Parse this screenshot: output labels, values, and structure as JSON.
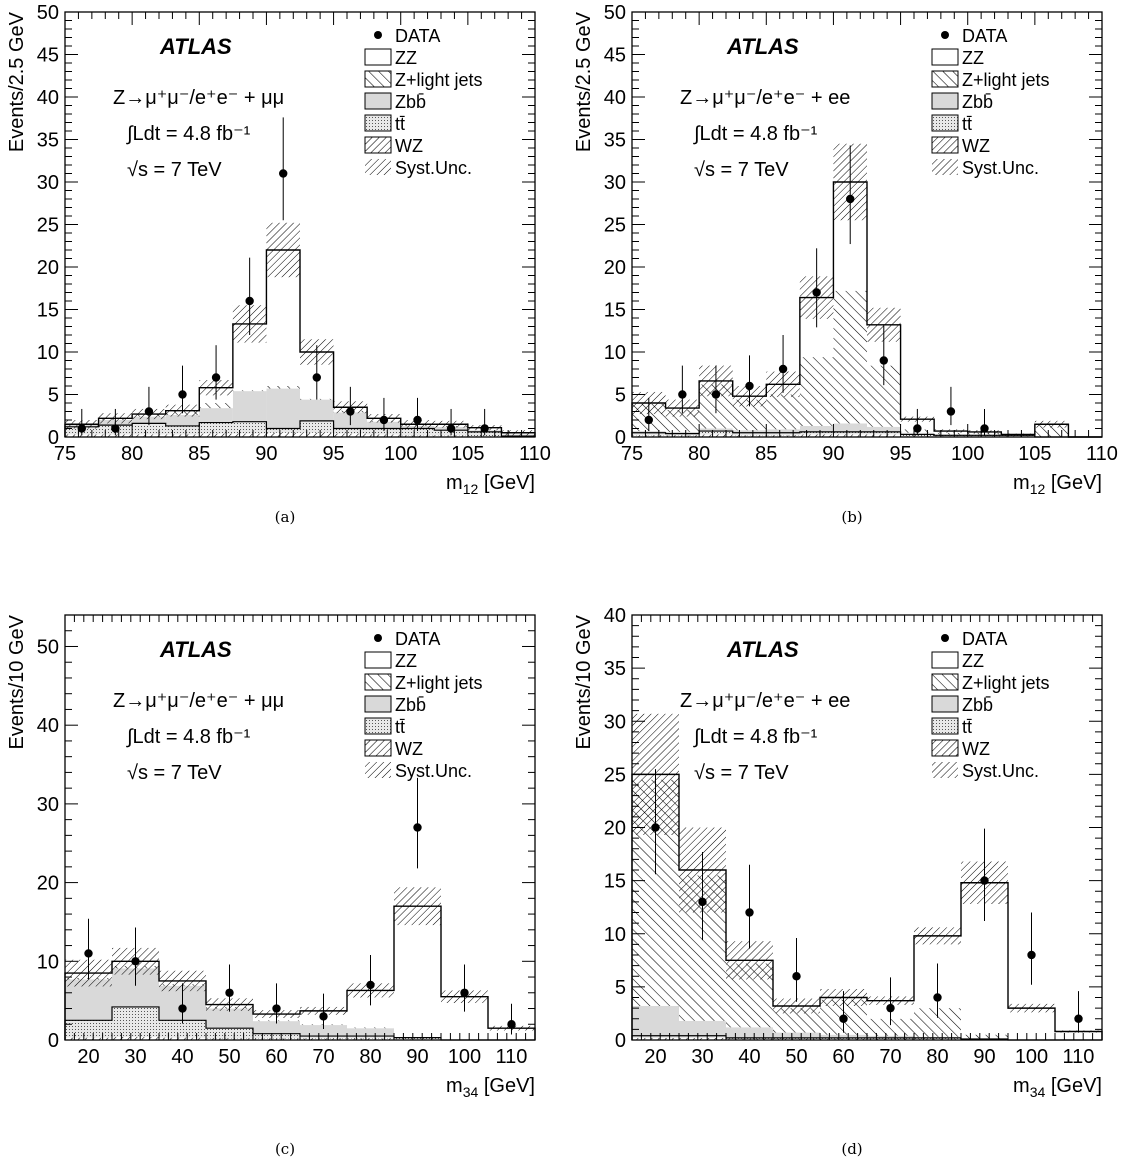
{
  "chart_data": [
    {
      "type": "bar",
      "stacked": true,
      "caption": "(a)",
      "label": "ATLAS",
      "text_lines": [
        "Z→μ⁺μ⁻/e⁺e⁻ + μμ",
        "∫Ldt = 4.8 fb⁻¹",
        "√s = 7 TeV"
      ],
      "ylabel": "Events/2.5 GeV",
      "xlabel_main": "m",
      "xlabel_sub": "12",
      "xlabel_unit": " [GeV]",
      "xlim": [
        75,
        110
      ],
      "ylim": [
        0,
        50
      ],
      "xticks": [
        75,
        80,
        85,
        90,
        95,
        100,
        105,
        110
      ],
      "yticks": [
        0,
        5,
        10,
        15,
        20,
        25,
        30,
        35,
        40,
        45,
        50
      ],
      "x_edges": [
        75,
        77.5,
        80,
        82.5,
        85,
        87.5,
        90,
        92.5,
        95,
        97.5,
        100,
        102.5,
        105,
        107.5,
        110
      ],
      "series": [
        {
          "name": "WZ",
          "values": [
            0.3,
            0.3,
            0.3,
            0.3,
            0.4,
            0.4,
            0.5,
            0.5,
            0.4,
            0.3,
            0.2,
            0.2,
            0.1,
            0.1
          ]
        },
        {
          "name": "tt̄",
          "values": [
            0.9,
            1.1,
            1.3,
            1.0,
            1.3,
            1.4,
            0.5,
            1.4,
            0.6,
            0.7,
            0.8,
            0.6,
            0.5,
            0
          ]
        },
        {
          "name": "Zbb̄",
          "values": [
            0.3,
            0.6,
            0.8,
            1.3,
            1.7,
            3.6,
            4.7,
            2.5,
            1.9,
            0.8,
            0.3,
            0.4,
            0.2,
            0.2
          ]
        },
        {
          "name": "Z+light jets",
          "values": [
            0.0,
            0.2,
            0.3,
            0.5,
            0.6,
            0.1,
            0.3,
            0.1,
            0.2,
            0.1,
            0.2,
            0.1,
            0.0,
            0.0
          ]
        },
        {
          "name": "ZZ",
          "values": [
            0,
            0,
            0,
            0,
            1.8,
            7.8,
            16,
            5.5,
            0.4,
            0.3,
            0,
            0.2,
            0.3,
            0.2
          ]
        }
      ],
      "syst_band": {
        "name": "Syst.Unc.",
        "halfwidths": [
          0.5,
          0.6,
          0.6,
          0.7,
          0.9,
          2.2,
          3.2,
          1.5,
          0.7,
          0.5,
          0.5,
          0.4,
          0.3,
          0.3
        ]
      },
      "data": {
        "name": "DATA",
        "x": [
          76.25,
          78.75,
          81.25,
          83.75,
          86.25,
          88.75,
          91.25,
          93.75,
          96.25,
          98.75,
          101.25,
          103.75,
          106.25
        ],
        "y": [
          1,
          1,
          3,
          5,
          7,
          16,
          31,
          7,
          3,
          2,
          2,
          1,
          1
        ],
        "err_up": [
          2.3,
          2.3,
          2.9,
          3.4,
          3.8,
          5.1,
          6.6,
          3.8,
          2.9,
          2.6,
          2.6,
          2.3,
          2.3
        ],
        "err_down": [
          0.8,
          0.8,
          1.6,
          2.2,
          2.6,
          4.0,
          5.5,
          2.6,
          1.6,
          1.3,
          1.3,
          0.8,
          0.8
        ]
      },
      "legend": [
        "DATA",
        "ZZ",
        "Z+light jets",
        "Zbb̄",
        "tt̄",
        "WZ",
        "Syst.Unc."
      ]
    },
    {
      "type": "bar",
      "stacked": true,
      "caption": "(b)",
      "label": "ATLAS",
      "text_lines": [
        "Z→μ⁺μ⁻/e⁺e⁻ + ee",
        "∫Ldt = 4.8 fb⁻¹",
        "√s = 7 TeV"
      ],
      "ylabel": "Events/2.5 GeV",
      "xlabel_main": "m",
      "xlabel_sub": "12",
      "xlabel_unit": " [GeV]",
      "xlim": [
        75,
        110
      ],
      "ylim": [
        0,
        50
      ],
      "xticks": [
        75,
        80,
        85,
        90,
        95,
        100,
        105,
        110
      ],
      "yticks": [
        0,
        5,
        10,
        15,
        20,
        25,
        30,
        35,
        40,
        45,
        50
      ],
      "x_edges": [
        75,
        77.5,
        80,
        82.5,
        85,
        87.5,
        90,
        92.5,
        95,
        97.5,
        100,
        102.5,
        105,
        107.5,
        110
      ],
      "series": [
        {
          "name": "WZ",
          "values": [
            0.2,
            0.2,
            0.3,
            0.2,
            0.2,
            0.3,
            0.3,
            0.3,
            0.1,
            0.1,
            0.1,
            0.1,
            0.0,
            0.0
          ]
        },
        {
          "name": "tt̄",
          "values": [
            0.3,
            0.2,
            0.4,
            0.3,
            0.3,
            0.3,
            0.3,
            0.3,
            0.2,
            0.1,
            0.1,
            0.1,
            0.0,
            0.0
          ]
        },
        {
          "name": "Zbb̄",
          "values": [
            0.2,
            0.2,
            0.3,
            0.3,
            0.4,
            0.7,
            1.0,
            0.6,
            0.2,
            0.1,
            0.1,
            0.1,
            0.0,
            0.0
          ]
        },
        {
          "name": "Z+light jets",
          "values": [
            3.2,
            2.6,
            5.2,
            3.6,
            4.1,
            8.1,
            15.6,
            7.2,
            0.4,
            0.2,
            0.2,
            0.0,
            1.4,
            0.0
          ]
        },
        {
          "name": "ZZ",
          "values": [
            0.1,
            0.2,
            0.4,
            0.4,
            1.2,
            7.0,
            12.8,
            4.8,
            1.2,
            0.2,
            0.1,
            0.0,
            0.1,
            0.0
          ]
        }
      ],
      "syst_band": {
        "name": "Syst.Unc.",
        "halfwidths": [
          1.3,
          1.0,
          1.8,
          1.2,
          1.5,
          2.5,
          4.5,
          2.0,
          0.3,
          0.2,
          0.2,
          0.1,
          0.4,
          0.0
        ]
      },
      "data": {
        "name": "DATA",
        "x": [
          76.25,
          78.75,
          81.25,
          83.75,
          86.25,
          88.75,
          91.25,
          93.75,
          96.25,
          98.75,
          101.25
        ],
        "y": [
          2,
          5,
          5,
          6,
          8,
          17,
          28,
          9,
          1,
          3,
          1
        ],
        "err_up": [
          2.6,
          3.4,
          3.4,
          3.6,
          4.0,
          5.2,
          6.3,
          4.1,
          2.3,
          2.9,
          2.3
        ],
        "err_down": [
          1.3,
          2.2,
          2.2,
          2.4,
          2.8,
          4.1,
          5.3,
          2.9,
          0.8,
          1.6,
          0.8
        ]
      },
      "legend": [
        "DATA",
        "ZZ",
        "Z+light jets",
        "Zbb̄",
        "tt̄",
        "WZ",
        "Syst.Unc."
      ]
    },
    {
      "type": "bar",
      "stacked": true,
      "caption": "(c)",
      "label": "ATLAS",
      "text_lines": [
        "Z→μ⁺μ⁻/e⁺e⁻ + μμ",
        "∫Ldt = 4.8 fb⁻¹",
        "√s = 7 TeV"
      ],
      "ylabel": "Events/10 GeV",
      "xlabel_main": "m",
      "xlabel_sub": "34",
      "xlabel_unit": " [GeV]",
      "xlim": [
        15,
        115
      ],
      "ylim": [
        0,
        54
      ],
      "xticks": [
        20,
        30,
        40,
        50,
        60,
        70,
        80,
        90,
        100,
        110
      ],
      "yticks": [
        0,
        10,
        20,
        30,
        40,
        50
      ],
      "x_edges": [
        15,
        25,
        35,
        45,
        55,
        65,
        75,
        85,
        95,
        105,
        115
      ],
      "series": [
        {
          "name": "WZ",
          "values": [
            0.3,
            0.4,
            0.3,
            0.2,
            0.2,
            0.2,
            0.2,
            0.1,
            0.0,
            0.0
          ]
        },
        {
          "name": "tt̄",
          "values": [
            2.2,
            3.8,
            2.2,
            1.3,
            0.6,
            0.3,
            0.3,
            0.2,
            0.0,
            0.0
          ]
        },
        {
          "name": "Zbb̄",
          "values": [
            5.2,
            4.9,
            4.4,
            2.5,
            1.6,
            1.4,
            1.0,
            0.0,
            0.0,
            0.0
          ]
        },
        {
          "name": "Z+light jets",
          "values": [
            0.2,
            0.3,
            0.2,
            0.2,
            0.1,
            0.1,
            0.1,
            0.0,
            0.0,
            0.0
          ]
        },
        {
          "name": "ZZ",
          "values": [
            0.6,
            0.6,
            0.4,
            0.3,
            0.8,
            1.7,
            4.7,
            16.7,
            5.5,
            1.5
          ]
        }
      ],
      "syst_band": {
        "name": "Syst.Unc.",
        "halfwidths": [
          1.7,
          1.7,
          1.3,
          0.8,
          0.5,
          0.5,
          0.9,
          2.4,
          0.8,
          0.3
        ]
      },
      "data": {
        "name": "DATA",
        "x": [
          20,
          30,
          40,
          50,
          60,
          70,
          80,
          90,
          100,
          110
        ],
        "y": [
          11,
          10,
          4,
          6,
          4,
          3,
          7,
          27,
          6,
          2
        ],
        "err_up": [
          4.4,
          4.3,
          3.2,
          3.6,
          3.2,
          2.9,
          3.8,
          6.3,
          3.6,
          2.6
        ],
        "err_down": [
          3.3,
          3.1,
          1.9,
          2.4,
          1.9,
          1.6,
          2.6,
          5.2,
          2.4,
          1.3
        ]
      },
      "legend": [
        "DATA",
        "ZZ",
        "Z+light jets",
        "Zbb̄",
        "tt̄",
        "WZ",
        "Syst.Unc."
      ]
    },
    {
      "type": "bar",
      "stacked": true,
      "caption": "(d)",
      "label": "ATLAS",
      "text_lines": [
        "Z→μ⁺μ⁻/e⁺e⁻ + ee",
        "∫Ldt = 4.8 fb⁻¹",
        "√s = 7 TeV"
      ],
      "ylabel": "Events/10 GeV",
      "xlabel_main": "m",
      "xlabel_sub": "34",
      "xlabel_unit": " [GeV]",
      "xlim": [
        15,
        115
      ],
      "ylim": [
        0,
        40
      ],
      "xticks": [
        20,
        30,
        40,
        50,
        60,
        70,
        80,
        90,
        100,
        110
      ],
      "yticks": [
        0,
        5,
        10,
        15,
        20,
        25,
        30,
        35,
        40
      ],
      "x_edges": [
        15,
        25,
        35,
        45,
        55,
        65,
        75,
        85,
        95,
        105,
        115
      ],
      "series": [
        {
          "name": "WZ",
          "values": [
            0.2,
            0.2,
            0.1,
            0.1,
            0.1,
            0.1,
            0.1,
            0.1,
            0.0,
            0.0
          ]
        },
        {
          "name": "tt̄",
          "values": [
            0.2,
            0.2,
            0.1,
            0.1,
            0.1,
            0.1,
            0.1,
            0.0,
            0.0,
            0.0
          ]
        },
        {
          "name": "Zbb̄",
          "values": [
            2.8,
            1.4,
            1.0,
            0.5,
            0.3,
            0.2,
            0.1,
            0.0,
            0.0,
            0.0
          ]
        },
        {
          "name": "Z+light jets",
          "values": [
            21.3,
            13.7,
            6.0,
            2.3,
            3.3,
            1.6,
            2.7,
            0.4,
            0.0,
            0.0
          ]
        },
        {
          "name": "ZZ",
          "values": [
            0.5,
            0.5,
            0.3,
            0.2,
            0.2,
            1.7,
            6.8,
            14.3,
            3.0,
            0.8
          ]
        }
      ],
      "syst_band": {
        "name": "Syst.Unc.",
        "halfwidths": [
          5.7,
          4.0,
          1.8,
          0.7,
          0.8,
          0.4,
          0.8,
          2.0,
          0.4,
          0.1
        ]
      },
      "data": {
        "name": "DATA",
        "x": [
          20,
          30,
          40,
          50,
          60,
          70,
          80,
          90,
          100,
          110
        ],
        "y": [
          20,
          13,
          12,
          6,
          2,
          3,
          4,
          15,
          8,
          2
        ],
        "err_up": [
          5.5,
          4.7,
          4.5,
          3.6,
          2.6,
          2.9,
          3.2,
          4.9,
          4.0,
          2.6
        ],
        "err_down": [
          4.4,
          3.6,
          3.4,
          2.4,
          1.3,
          1.6,
          1.9,
          3.8,
          2.8,
          1.3
        ]
      },
      "legend": [
        "DATA",
        "ZZ",
        "Z+light jets",
        "Zbb̄",
        "tt̄",
        "WZ",
        "Syst.Unc."
      ]
    }
  ],
  "colors": {
    "axis": "#000000",
    "data": "#000000",
    "ZZ": "#ffffff",
    "Z+light jets": "#ffffff",
    "Zbb̄": "#d9d9d9",
    "tt̄": "#cfcfcf",
    "WZ": "#ffffff"
  }
}
